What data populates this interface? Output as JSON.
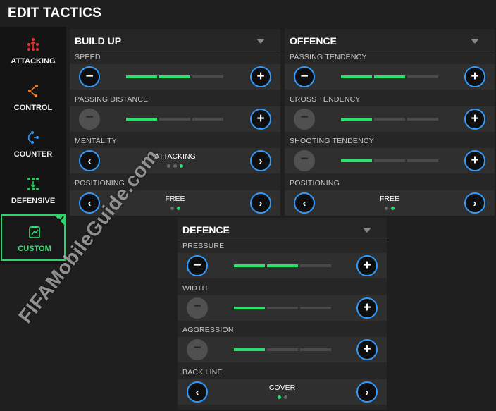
{
  "app": {
    "title": "EDIT TACTICS"
  },
  "sidebar": {
    "items": [
      {
        "label": "ATTACKING",
        "icon": "attacking-icon",
        "color": "#e8362b",
        "active": false
      },
      {
        "label": "CONTROL",
        "icon": "control-icon",
        "color": "#f07a1e",
        "active": false
      },
      {
        "label": "COUNTER",
        "icon": "counter-icon",
        "color": "#2f9bff",
        "active": false
      },
      {
        "label": "DEFENSIVE",
        "icon": "defensive-icon",
        "color": "#27c85a",
        "active": false
      },
      {
        "label": "CUSTOM",
        "icon": "custom-icon",
        "color": "#35e07a",
        "active": true
      }
    ]
  },
  "build_up": {
    "title": "BUILD UP",
    "rows": [
      {
        "label": "SPEED",
        "type": "level",
        "level": 2,
        "max": 3
      },
      {
        "label": "PASSING DISTANCE",
        "type": "level",
        "level": 1,
        "max": 3
      },
      {
        "label": "MENTALITY",
        "type": "select",
        "value": "ATTACKING",
        "index": 3,
        "count": 3
      },
      {
        "label": "POSITIONING",
        "type": "select",
        "value": "FREE",
        "index": 2,
        "count": 2
      }
    ]
  },
  "offence": {
    "title": "OFFENCE",
    "rows": [
      {
        "label": "PASSING TENDENCY",
        "type": "level",
        "level": 2,
        "max": 3
      },
      {
        "label": "CROSS TENDENCY",
        "type": "level",
        "level": 1,
        "max": 3
      },
      {
        "label": "SHOOTING TENDENCY",
        "type": "level",
        "level": 1,
        "max": 3
      },
      {
        "label": "POSITIONING",
        "type": "select",
        "value": "FREE",
        "index": 2,
        "count": 2
      }
    ]
  },
  "defence": {
    "title": "DEFENCE",
    "rows": [
      {
        "label": "PRESSURE",
        "type": "level",
        "level": 2,
        "max": 3
      },
      {
        "label": "WIDTH",
        "type": "level",
        "level": 1,
        "max": 3
      },
      {
        "label": "AGGRESSION",
        "type": "level",
        "level": 1,
        "max": 3
      },
      {
        "label": "BACK LINE",
        "type": "select",
        "value": "COVER",
        "index": 1,
        "count": 2
      }
    ]
  },
  "controls": {
    "minus": "−",
    "plus": "+",
    "prev": "‹",
    "next": "›"
  },
  "colors": {
    "accent_green": "#27e36c",
    "button_ring": "#2f9bff",
    "panel": "#262626"
  },
  "watermark": "FIFAMobileGuide.com"
}
